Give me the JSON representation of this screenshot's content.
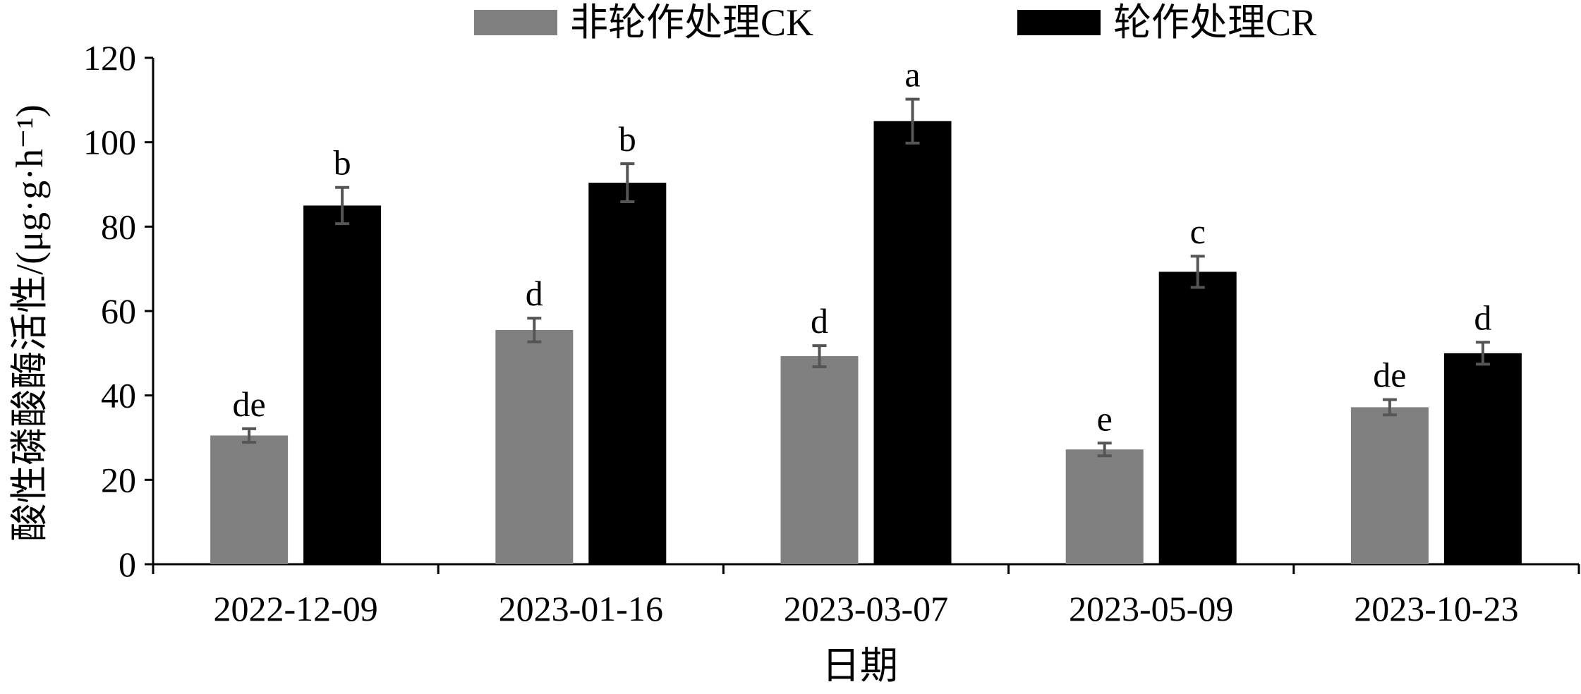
{
  "chart_data": {
    "type": "bar",
    "title": "",
    "xlabel": "日期",
    "ylabel": "酸性磷酸酶活性/(μg·g·h⁻¹)",
    "ylim": [
      0,
      120
    ],
    "yticks": [
      "0",
      "20",
      "40",
      "60",
      "80",
      "100",
      "120"
    ],
    "categories": [
      "2022-12-09",
      "2023-01-16",
      "2023-03-07",
      "2023-05-09",
      "2023-10-23"
    ],
    "grid": false,
    "legend_position": "top",
    "series": [
      {
        "name": "非轮作处理CK",
        "color": "#808080",
        "values": [
          30.5,
          55.5,
          49.3,
          27.2,
          37.2
        ],
        "errors": [
          1.6,
          2.8,
          2.5,
          1.5,
          1.8
        ],
        "labels": [
          "de",
          "d",
          "d",
          "e",
          "de"
        ]
      },
      {
        "name": "轮作处理CR",
        "color": "#000000",
        "values": [
          85.0,
          90.4,
          105.0,
          69.3,
          50.0
        ],
        "errors": [
          4.3,
          4.5,
          5.2,
          3.7,
          2.6
        ],
        "labels": [
          "b",
          "b",
          "a",
          "c",
          "d"
        ]
      }
    ],
    "error_bar_color": "#555555"
  }
}
